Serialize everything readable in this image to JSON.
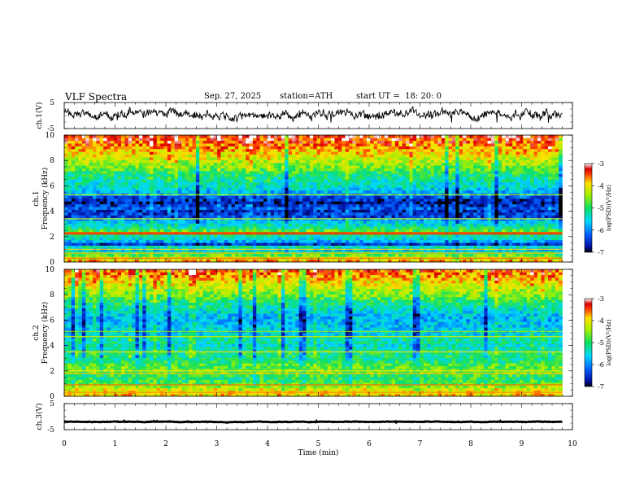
{
  "header": {
    "title": "VLF Spectra",
    "date": "Sep. 27, 2025",
    "station": "station=ATH",
    "start_ut": "start UT =  18: 20: 0"
  },
  "chart_data": {
    "type": "heatmap",
    "xlabel": "Time (min)",
    "xlim": [
      0,
      10
    ],
    "x_ticks": [
      "0",
      "1",
      "2",
      "3",
      "4",
      "5",
      "6",
      "7",
      "8",
      "9",
      "10"
    ],
    "data_end_min": 9.8,
    "panels": [
      {
        "id": "ch1-waveform",
        "type": "line",
        "ylabel": "ch.1(V)",
        "ylim": [
          -5,
          5
        ],
        "y_ticks": [
          "5",
          "-5"
        ],
        "trace_level": 0.5,
        "trace_amplitude": 2.2
      },
      {
        "id": "ch1-spectrogram",
        "type": "heatmap",
        "ylabel_top": "ch.1",
        "ylabel": "Frequency (kHz)",
        "ylim": [
          0,
          10
        ],
        "y_ticks": [
          "0",
          "2",
          "4",
          "6",
          "8",
          "10"
        ],
        "colorbar": {
          "label": "log(PSD)(V²/Hz)",
          "range": [
            -7,
            -3
          ],
          "ticks": [
            "-3",
            "-4",
            "-5",
            "-6",
            "-7"
          ]
        }
      },
      {
        "id": "ch2-spectrogram",
        "type": "heatmap",
        "ylabel_top": "ch.2",
        "ylabel": "Frequency (kHz)",
        "ylim": [
          0,
          10
        ],
        "y_ticks": [
          "0",
          "2",
          "4",
          "6",
          "8",
          "10"
        ],
        "colorbar": {
          "label": "log(PSD)(V²/Hz)",
          "range": [
            -7,
            -3
          ],
          "ticks": [
            "-3",
            "-4",
            "-5",
            "-6",
            "-7"
          ]
        }
      },
      {
        "id": "ch3-waveform",
        "type": "line",
        "ylabel": "ch.3(V)",
        "ylim": [
          -5,
          5
        ],
        "y_ticks": [
          "5",
          "-5"
        ],
        "trace_level": -2,
        "trace_amplitude": 0.15
      }
    ],
    "ch1_profile": [
      [
        0.0,
        -3.6
      ],
      [
        0.3,
        -4.2
      ],
      [
        0.6,
        -4.8
      ],
      [
        1.0,
        -5.8
      ],
      [
        1.2,
        -5.3
      ],
      [
        1.4,
        -6.5
      ],
      [
        1.7,
        -5.6
      ],
      [
        2.1,
        -5.2
      ],
      [
        2.2,
        -3.9
      ],
      [
        2.4,
        -4.6
      ],
      [
        2.8,
        -5.3
      ],
      [
        3.2,
        -5.6
      ],
      [
        3.6,
        -6.4
      ],
      [
        4.0,
        -6.5
      ],
      [
        4.3,
        -6.2
      ],
      [
        4.6,
        -6.7
      ],
      [
        5.0,
        -6.5
      ],
      [
        5.3,
        -6.0
      ],
      [
        5.6,
        -5.7
      ],
      [
        6.0,
        -5.4
      ],
      [
        6.4,
        -5.3
      ],
      [
        7.0,
        -5.0
      ],
      [
        7.5,
        -4.6
      ],
      [
        8.0,
        -4.3
      ],
      [
        8.5,
        -4.0
      ],
      [
        9.0,
        -3.7
      ],
      [
        9.5,
        -3.5
      ],
      [
        10.0,
        -3.3
      ]
    ],
    "ch1_lines": [
      [
        0.3,
        -3.6
      ],
      [
        0.7,
        -3.8
      ],
      [
        1.0,
        -3.9
      ],
      [
        2.2,
        -3.4
      ],
      [
        2.3,
        -3.3
      ],
      [
        3.4,
        -4.2
      ],
      [
        5.3,
        -4.3
      ]
    ],
    "ch2_profile": [
      [
        0.0,
        -4.0
      ],
      [
        0.3,
        -3.9
      ],
      [
        0.6,
        -4.2
      ],
      [
        1.0,
        -4.8
      ],
      [
        1.5,
        -5.0
      ],
      [
        2.0,
        -4.6
      ],
      [
        2.5,
        -4.8
      ],
      [
        2.9,
        -5.2
      ],
      [
        3.3,
        -5.0
      ],
      [
        3.6,
        -5.2
      ],
      [
        4.0,
        -5.4
      ],
      [
        4.5,
        -5.2
      ],
      [
        5.0,
        -5.6
      ],
      [
        5.5,
        -5.6
      ],
      [
        6.0,
        -5.8
      ],
      [
        6.5,
        -5.6
      ],
      [
        7.0,
        -5.3
      ],
      [
        7.5,
        -5.0
      ],
      [
        8.0,
        -4.6
      ],
      [
        8.5,
        -4.3
      ],
      [
        9.0,
        -4.0
      ],
      [
        9.5,
        -3.7
      ],
      [
        10.0,
        -3.5
      ]
    ],
    "ch2_lines": [
      [
        0.3,
        -3.7
      ],
      [
        0.9,
        -3.6
      ],
      [
        1.8,
        -3.8
      ],
      [
        2.0,
        -4.0
      ],
      [
        3.5,
        -3.9
      ],
      [
        4.7,
        -4.2
      ],
      [
        5.1,
        -4.5
      ]
    ]
  }
}
